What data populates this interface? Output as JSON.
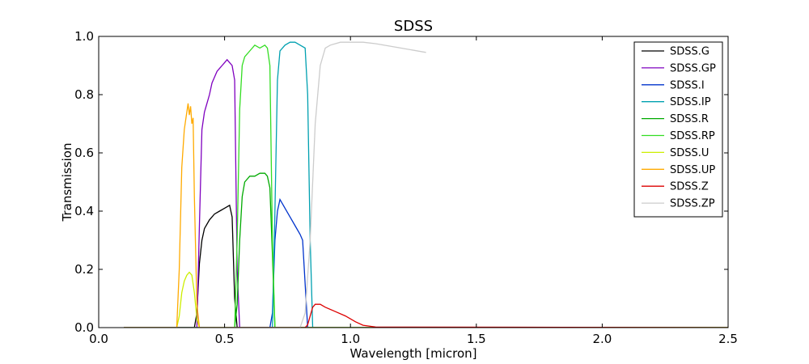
{
  "chart_data": {
    "type": "line",
    "title": "SDSS",
    "xlabel": "Wavelength [micron]",
    "ylabel": "Transmission",
    "xlim": [
      0.0,
      2.5
    ],
    "ylim": [
      0.0,
      1.0
    ],
    "xticks": [
      0.0,
      0.5,
      1.0,
      1.5,
      2.0,
      2.5
    ],
    "xtick_labels": [
      "0.0",
      "0.5",
      "1.0",
      "1.5",
      "2.0",
      "2.5"
    ],
    "yticks": [
      0.0,
      0.2,
      0.4,
      0.6,
      0.8,
      1.0
    ],
    "ytick_labels": [
      "0.0",
      "0.2",
      "0.4",
      "0.6",
      "0.8",
      "1.0"
    ],
    "grid": false,
    "legend_position": "top-right",
    "series": [
      {
        "name": "SDSS.G",
        "color": "#000000",
        "x": [
          0.1,
          0.38,
          0.39,
          0.4,
          0.41,
          0.42,
          0.44,
          0.46,
          0.48,
          0.5,
          0.52,
          0.53,
          0.54,
          0.55,
          2.5
        ],
        "y": [
          0.0,
          0.0,
          0.05,
          0.22,
          0.3,
          0.34,
          0.37,
          0.39,
          0.4,
          0.41,
          0.42,
          0.38,
          0.1,
          0.0,
          0.0
        ]
      },
      {
        "name": "SDSS.GP",
        "color": "#7f00bf",
        "x": [
          0.1,
          0.39,
          0.4,
          0.41,
          0.42,
          0.43,
          0.44,
          0.45,
          0.46,
          0.47,
          0.48,
          0.49,
          0.5,
          0.51,
          0.52,
          0.53,
          0.54,
          0.55,
          0.56,
          2.5
        ],
        "y": [
          0.0,
          0.0,
          0.35,
          0.68,
          0.74,
          0.77,
          0.8,
          0.84,
          0.86,
          0.88,
          0.89,
          0.9,
          0.91,
          0.92,
          0.91,
          0.9,
          0.85,
          0.2,
          0.0,
          0.0
        ]
      },
      {
        "name": "SDSS.I",
        "color": "#0033cc",
        "x": [
          0.1,
          0.68,
          0.69,
          0.7,
          0.71,
          0.72,
          0.74,
          0.76,
          0.78,
          0.8,
          0.81,
          0.82,
          0.83,
          2.5
        ],
        "y": [
          0.0,
          0.0,
          0.05,
          0.3,
          0.4,
          0.44,
          0.41,
          0.38,
          0.35,
          0.32,
          0.3,
          0.15,
          0.0,
          0.0
        ]
      },
      {
        "name": "SDSS.IP",
        "color": "#00a0b0",
        "x": [
          0.1,
          0.69,
          0.7,
          0.71,
          0.72,
          0.74,
          0.76,
          0.78,
          0.8,
          0.82,
          0.83,
          0.84,
          0.85,
          2.5
        ],
        "y": [
          0.0,
          0.0,
          0.4,
          0.85,
          0.95,
          0.97,
          0.98,
          0.98,
          0.97,
          0.96,
          0.8,
          0.3,
          0.0,
          0.0
        ]
      },
      {
        "name": "SDSS.R",
        "color": "#00aa00",
        "x": [
          0.1,
          0.54,
          0.55,
          0.56,
          0.57,
          0.58,
          0.6,
          0.62,
          0.64,
          0.66,
          0.67,
          0.68,
          0.69,
          0.7,
          2.5
        ],
        "y": [
          0.0,
          0.0,
          0.08,
          0.3,
          0.45,
          0.5,
          0.52,
          0.52,
          0.53,
          0.53,
          0.52,
          0.48,
          0.25,
          0.0,
          0.0
        ]
      },
      {
        "name": "SDSS.RP",
        "color": "#33dd22",
        "x": [
          0.1,
          0.54,
          0.55,
          0.56,
          0.57,
          0.58,
          0.6,
          0.62,
          0.64,
          0.66,
          0.67,
          0.68,
          0.69,
          0.7,
          2.5
        ],
        "y": [
          0.0,
          0.0,
          0.3,
          0.75,
          0.9,
          0.93,
          0.95,
          0.97,
          0.96,
          0.97,
          0.96,
          0.9,
          0.3,
          0.0,
          0.0
        ]
      },
      {
        "name": "SDSS.U",
        "color": "#ccee00",
        "x": [
          0.1,
          0.31,
          0.32,
          0.33,
          0.34,
          0.35,
          0.36,
          0.37,
          0.38,
          0.39,
          0.4,
          2.5
        ],
        "y": [
          0.0,
          0.0,
          0.04,
          0.12,
          0.16,
          0.18,
          0.19,
          0.18,
          0.12,
          0.03,
          0.0,
          0.0
        ]
      },
      {
        "name": "SDSS.UP",
        "color": "#ffaa00",
        "x": [
          0.1,
          0.31,
          0.32,
          0.33,
          0.34,
          0.35,
          0.355,
          0.36,
          0.365,
          0.37,
          0.375,
          0.38,
          0.39,
          0.4,
          2.5
        ],
        "y": [
          0.0,
          0.0,
          0.2,
          0.55,
          0.68,
          0.74,
          0.77,
          0.73,
          0.76,
          0.7,
          0.72,
          0.45,
          0.08,
          0.0,
          0.0
        ]
      },
      {
        "name": "SDSS.Z",
        "color": "#dd0000",
        "x": [
          0.1,
          0.82,
          0.83,
          0.84,
          0.85,
          0.86,
          0.88,
          0.9,
          0.94,
          0.98,
          1.0,
          1.02,
          1.05,
          1.1,
          2.5
        ],
        "y": [
          0.0,
          0.0,
          0.01,
          0.04,
          0.07,
          0.08,
          0.08,
          0.07,
          0.055,
          0.04,
          0.03,
          0.02,
          0.008,
          0.002,
          0.0
        ]
      },
      {
        "name": "SDSS.ZP",
        "color": "#cccccc",
        "x": [
          0.1,
          0.8,
          0.82,
          0.84,
          0.86,
          0.88,
          0.9,
          0.92,
          0.94,
          0.96,
          1.0,
          1.05,
          1.1,
          1.2,
          1.3
        ],
        "y": [
          0.0,
          0.0,
          0.05,
          0.3,
          0.7,
          0.9,
          0.96,
          0.97,
          0.975,
          0.98,
          0.98,
          0.98,
          0.975,
          0.96,
          0.945
        ]
      }
    ]
  }
}
